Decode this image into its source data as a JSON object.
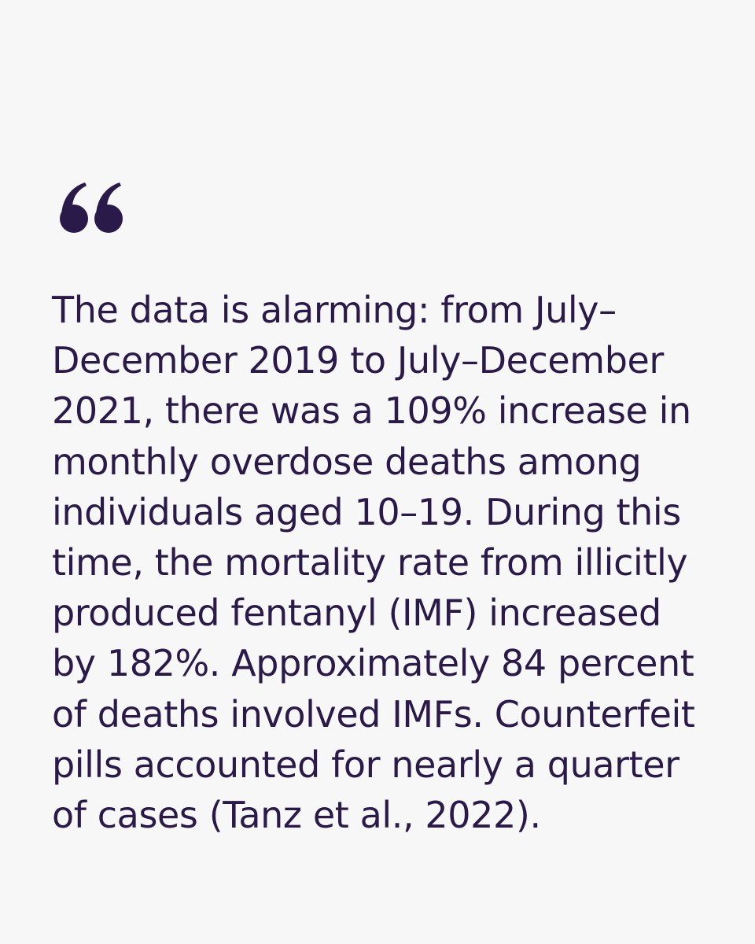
{
  "quote": {
    "icon": "quote-open-icon",
    "color": "#2a1a4a",
    "lines": [
      "The data is alarming: from July–",
      "December 2019 to July–December",
      "2021, there was a 109% increase in",
      "monthly overdose deaths among",
      "individuals aged 10–19. During this",
      "time, the mortality rate from illicitly",
      "produced fentanyl (IMF) increased",
      "by 182%. Approximately 84 percent",
      "of deaths involved IMFs. Counterfeit",
      "pills accounted for nearly a quarter",
      "of cases (Tanz et al., 2022)."
    ]
  }
}
